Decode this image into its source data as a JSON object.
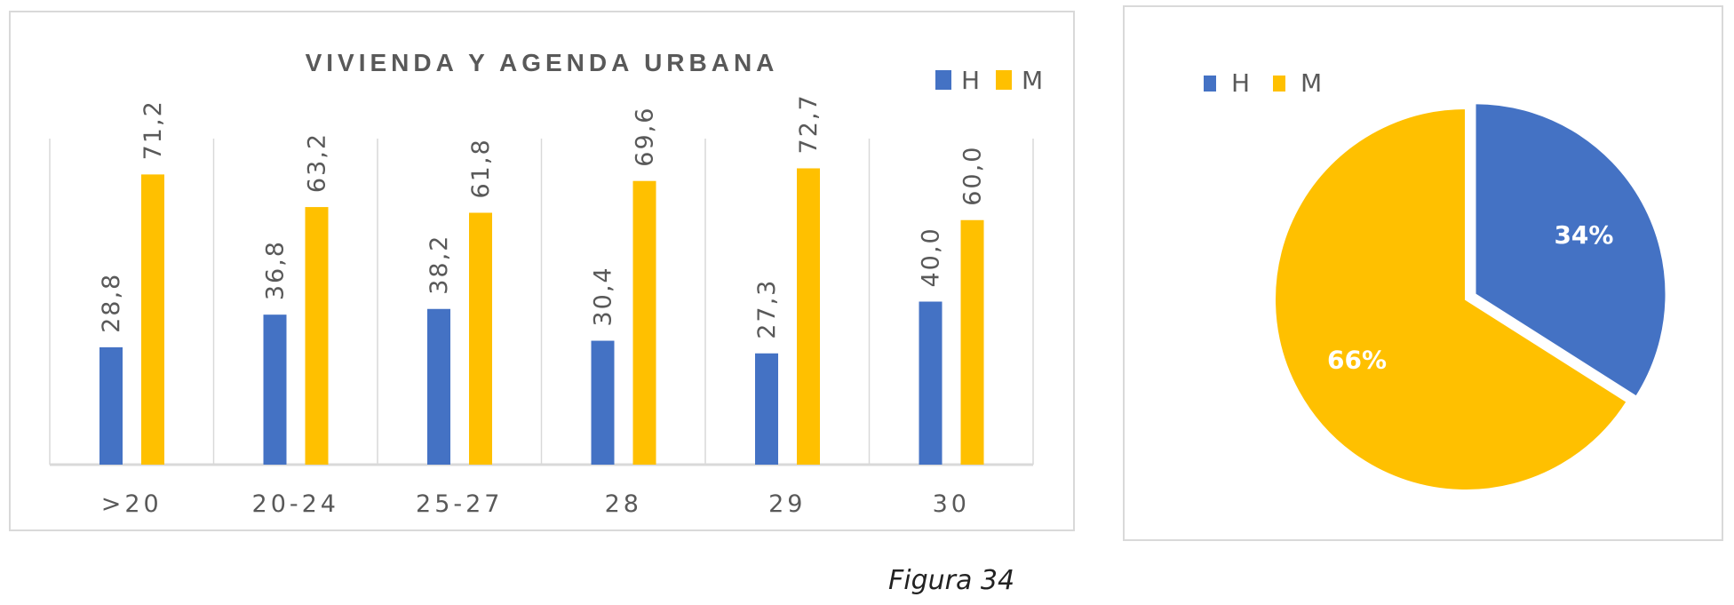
{
  "caption": "Figura 34",
  "colors": {
    "H": "#4472c4",
    "M": "#ffc000",
    "text": "#595959",
    "grid": "#d9d9d9"
  },
  "chart_data": [
    {
      "type": "bar",
      "title": "VIVIENDA Y AGENDA URBANA",
      "categories": [
        ">20",
        "20-24",
        "25-27",
        "28",
        "29",
        "30"
      ],
      "series": [
        {
          "name": "H",
          "values": [
            28.8,
            36.8,
            38.2,
            30.4,
            27.3,
            40.0
          ],
          "labels": [
            "28,8",
            "36,8",
            "38,2",
            "30,4",
            "27,3",
            "40,0"
          ]
        },
        {
          "name": "M",
          "values": [
            71.2,
            63.2,
            61.8,
            69.6,
            72.7,
            60.0
          ],
          "labels": [
            "71,2",
            "63,2",
            "61,8",
            "69,6",
            "72,7",
            "60,0"
          ]
        }
      ],
      "ylim": [
        0,
        80
      ],
      "legend": "top-right",
      "grid": "vertical category separators"
    },
    {
      "type": "pie",
      "categories": [
        "H",
        "M"
      ],
      "values": [
        34,
        66
      ],
      "labels": [
        "34%",
        "66%"
      ],
      "exploded": "H",
      "legend": "top-left"
    }
  ]
}
